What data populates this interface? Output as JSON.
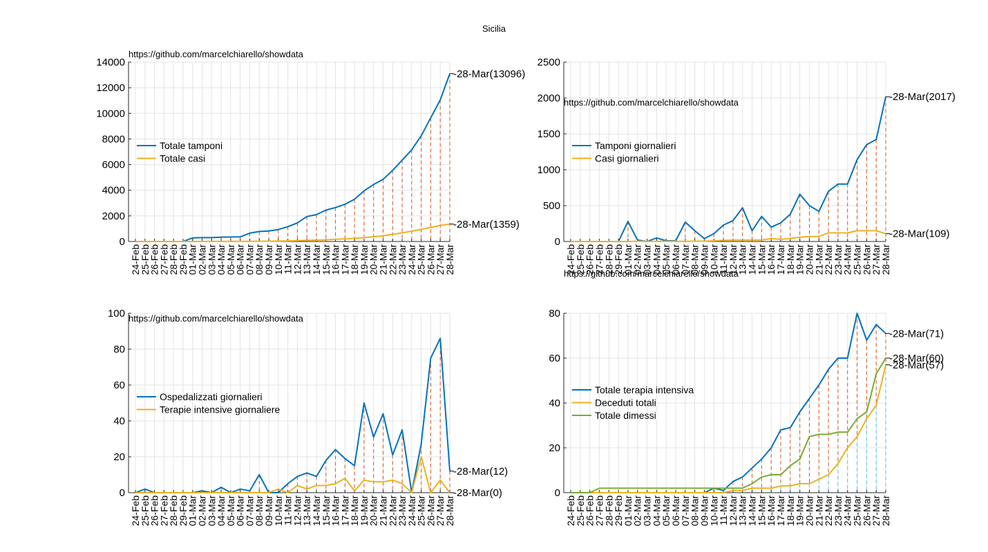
{
  "figure": {
    "title": "Sicilia"
  },
  "chart_data": [
    {
      "type": "line",
      "title": "",
      "watermark": "https://github.com/marcelchiarello/showdata",
      "categories": [
        "24-Feb",
        "25-Feb",
        "26-Feb",
        "27-Feb",
        "28-Feb",
        "29-Feb",
        "01-Mar",
        "02-Mar",
        "03-Mar",
        "04-Mar",
        "05-Mar",
        "06-Mar",
        "07-Mar",
        "08-Mar",
        "09-Mar",
        "10-Mar",
        "11-Mar",
        "12-Mar",
        "13-Mar",
        "14-Mar",
        "15-Mar",
        "16-Mar",
        "17-Mar",
        "18-Mar",
        "19-Mar",
        "20-Mar",
        "21-Mar",
        "22-Mar",
        "23-Mar",
        "24-Mar",
        "25-Mar",
        "26-Mar",
        "27-Mar",
        "28-Mar"
      ],
      "ylim": [
        0,
        14000
      ],
      "yticks": [
        0,
        2000,
        4000,
        6000,
        8000,
        10000,
        12000,
        14000
      ],
      "grid": true,
      "legend_position": "middle-left",
      "colors": {
        "drop_line": "#d95319"
      },
      "series": [
        {
          "name": "Totale tamponi",
          "color": "#0072bd",
          "values": [
            0,
            0,
            0,
            0,
            0,
            0,
            280,
            300,
            300,
            340,
            350,
            360,
            650,
            780,
            820,
            930,
            1150,
            1450,
            1950,
            2100,
            2450,
            2650,
            2900,
            3300,
            3950,
            4450,
            4850,
            5550,
            6350,
            7150,
            8250,
            9650,
            11050,
            13096
          ],
          "end_label": "28-Mar(13096)"
        },
        {
          "name": "Totale casi",
          "color": "#edb120",
          "values": [
            0,
            0,
            0,
            0,
            0,
            0,
            0,
            5,
            6,
            8,
            10,
            12,
            15,
            20,
            25,
            35,
            50,
            70,
            90,
            110,
            130,
            170,
            200,
            240,
            300,
            370,
            440,
            560,
            680,
            800,
            950,
            1100,
            1250,
            1359
          ],
          "end_label": "28-Mar(1359)"
        }
      ]
    },
    {
      "type": "line",
      "title": "",
      "watermark": "https://github.com/marcelchiarello/showdata",
      "categories": [
        "24-Feb",
        "25-Feb",
        "26-Feb",
        "27-Feb",
        "28-Feb",
        "29-Feb",
        "01-Mar",
        "02-Mar",
        "03-Mar",
        "04-Mar",
        "05-Mar",
        "06-Mar",
        "07-Mar",
        "08-Mar",
        "09-Mar",
        "10-Mar",
        "11-Mar",
        "12-Mar",
        "13-Mar",
        "14-Mar",
        "15-Mar",
        "16-Mar",
        "17-Mar",
        "18-Mar",
        "19-Mar",
        "20-Mar",
        "21-Mar",
        "22-Mar",
        "23-Mar",
        "24-Mar",
        "25-Mar",
        "26-Mar",
        "27-Mar",
        "28-Mar"
      ],
      "ylim": [
        0,
        2500
      ],
      "yticks": [
        0,
        500,
        1000,
        1500,
        2000,
        2500
      ],
      "grid": true,
      "legend_position": "middle-left",
      "colors": {
        "drop_line": "#d95319"
      },
      "series": [
        {
          "name": "Tamponi giornalieri",
          "color": "#0072bd",
          "values": [
            0,
            0,
            0,
            0,
            0,
            0,
            280,
            20,
            0,
            50,
            10,
            10,
            270,
            150,
            40,
            110,
            230,
            290,
            470,
            150,
            350,
            200,
            260,
            380,
            660,
            500,
            420,
            700,
            800,
            800,
            1140,
            1350,
            1420,
            2017
          ],
          "end_label": "28-Mar(2017)"
        },
        {
          "name": "Casi giornalieri",
          "color": "#edb120",
          "values": [
            0,
            0,
            0,
            0,
            0,
            0,
            0,
            5,
            1,
            2,
            2,
            2,
            3,
            5,
            5,
            10,
            15,
            20,
            20,
            20,
            20,
            40,
            30,
            40,
            60,
            70,
            70,
            120,
            120,
            120,
            150,
            150,
            150,
            109
          ],
          "end_label": "28-Mar(109)"
        }
      ]
    },
    {
      "type": "line",
      "title": "",
      "watermark": "https://github.com/marcelchiarello/showdata",
      "categories": [
        "24-Feb",
        "25-Feb",
        "26-Feb",
        "27-Feb",
        "28-Feb",
        "29-Feb",
        "01-Mar",
        "02-Mar",
        "03-Mar",
        "04-Mar",
        "05-Mar",
        "06-Mar",
        "07-Mar",
        "08-Mar",
        "09-Mar",
        "10-Mar",
        "11-Mar",
        "12-Mar",
        "13-Mar",
        "14-Mar",
        "15-Mar",
        "16-Mar",
        "17-Mar",
        "18-Mar",
        "19-Mar",
        "20-Mar",
        "21-Mar",
        "22-Mar",
        "23-Mar",
        "24-Mar",
        "25-Mar",
        "26-Mar",
        "27-Mar",
        "28-Mar"
      ],
      "ylim": [
        0,
        100
      ],
      "yticks": [
        0,
        20,
        40,
        60,
        80,
        100
      ],
      "grid": true,
      "legend_position": "middle-left",
      "colors": {
        "drop_line": "#d95319"
      },
      "series": [
        {
          "name": "Ospedalizzati giornalieri",
          "color": "#0072bd",
          "values": [
            0,
            2,
            0,
            0,
            0,
            0,
            0,
            1,
            0,
            3,
            0,
            2,
            1,
            10,
            0,
            0,
            5,
            9,
            11,
            9,
            18,
            24,
            19,
            15,
            50,
            31,
            44,
            21,
            35,
            0,
            27,
            75,
            86,
            12
          ],
          "end_label": "28-Mar(12)"
        },
        {
          "name": "Terapie intensive giornaliere",
          "color": "#edb120",
          "values": [
            0,
            0,
            0,
            0,
            0,
            0,
            0,
            0,
            0,
            0,
            0,
            0,
            0,
            0,
            0,
            2,
            0,
            4,
            2,
            4,
            4,
            5,
            8,
            1,
            7,
            6,
            6,
            7,
            5,
            0,
            20,
            0,
            7,
            0
          ],
          "end_label": "28-Mar(0)"
        }
      ]
    },
    {
      "type": "line",
      "title": "",
      "watermark": "https://github.com/marcelchiarello/showdata",
      "categories": [
        "24-Feb",
        "25-Feb",
        "26-Feb",
        "27-Feb",
        "28-Feb",
        "29-Feb",
        "01-Mar",
        "02-Mar",
        "03-Mar",
        "04-Mar",
        "05-Mar",
        "06-Mar",
        "07-Mar",
        "08-Mar",
        "09-Mar",
        "10-Mar",
        "11-Mar",
        "12-Mar",
        "13-Mar",
        "14-Mar",
        "15-Mar",
        "16-Mar",
        "17-Mar",
        "18-Mar",
        "19-Mar",
        "20-Mar",
        "21-Mar",
        "22-Mar",
        "23-Mar",
        "24-Mar",
        "25-Mar",
        "26-Mar",
        "27-Mar",
        "28-Mar"
      ],
      "ylim": [
        0,
        80
      ],
      "yticks": [
        0,
        20,
        40,
        60,
        80
      ],
      "grid": true,
      "legend_position": "middle-left",
      "colors": {
        "drop_line": "#d95319",
        "drop_line_alt": "#4dbeee"
      },
      "series": [
        {
          "name": "Totale terapia intensiva",
          "color": "#0072bd",
          "values": [
            0,
            0,
            0,
            0,
            0,
            0,
            0,
            0,
            0,
            0,
            0,
            0,
            0,
            0,
            0,
            2,
            1,
            5,
            7,
            11,
            15,
            20,
            28,
            29,
            36,
            42,
            48,
            55,
            60,
            60,
            80,
            68,
            75,
            71
          ],
          "end_label": "28-Mar(71)"
        },
        {
          "name": "Deceduti totali",
          "color": "#edb120",
          "values": [
            0,
            0,
            0,
            0,
            0,
            0,
            0,
            0,
            0,
            0,
            0,
            0,
            0,
            0,
            0,
            0,
            0,
            1,
            1,
            2,
            2,
            2,
            3,
            3,
            4,
            4,
            6,
            8,
            13,
            20,
            25,
            33,
            39,
            57
          ],
          "end_label": "28-Mar(57)"
        },
        {
          "name": "Totale dimessi",
          "color": "#77ac30",
          "values": [
            0,
            0,
            0,
            2,
            2,
            2,
            2,
            2,
            2,
            2,
            2,
            2,
            2,
            2,
            2,
            2,
            2,
            2,
            2,
            4,
            7,
            8,
            8,
            12,
            15,
            25,
            26,
            26,
            27,
            27,
            33,
            36,
            53,
            60
          ],
          "end_label": "28-Mar(60)"
        }
      ]
    }
  ]
}
